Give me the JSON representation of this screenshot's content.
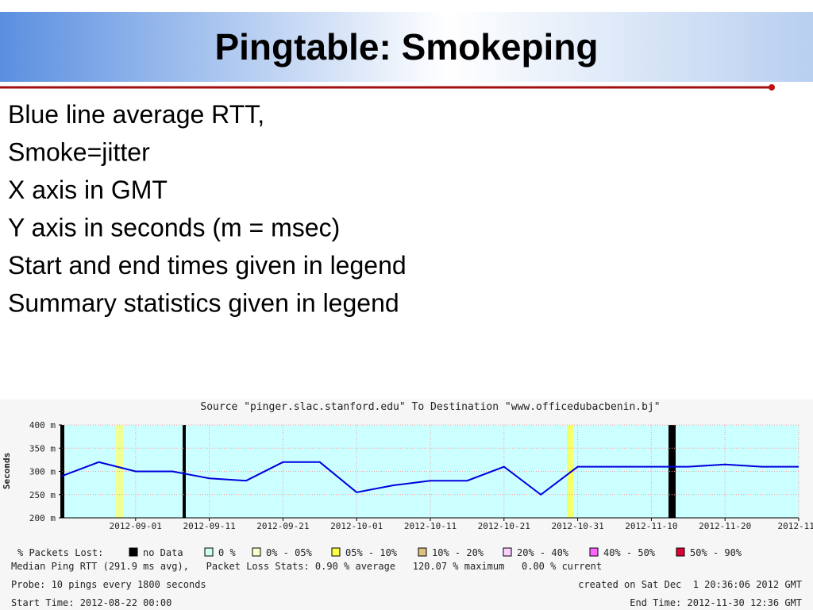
{
  "title": "Pingtable: Smokeping",
  "bullets": [
    "Blue line average RTT,",
    "Smoke=jitter",
    "X axis in GMT",
    "Y axis in seconds (m = msec)",
    "Start and end times given in legend",
    "Summary statistics given in legend"
  ],
  "chart_data": {
    "type": "line",
    "title": "Source \"pinger.slac.stanford.edu\" To Destination \"www.officedubacbenin.bj\"",
    "y_label": "Seconds",
    "x": [
      "2012-08-22",
      "2012-08-27",
      "2012-09-01",
      "2012-09-06",
      "2012-09-11",
      "2012-09-16",
      "2012-09-21",
      "2012-09-26",
      "2012-10-01",
      "2012-10-06",
      "2012-10-11",
      "2012-10-16",
      "2012-10-21",
      "2012-10-26",
      "2012-10-31",
      "2012-11-05",
      "2012-11-10",
      "2012-11-15",
      "2012-11-20",
      "2012-11-25",
      "2012-11-30"
    ],
    "series": [
      {
        "name": "Median Ping RTT",
        "color": "#0000dd",
        "values": [
          0.29,
          0.32,
          0.3,
          0.3,
          0.285,
          0.28,
          0.32,
          0.32,
          0.255,
          0.27,
          0.28,
          0.28,
          0.31,
          0.25,
          0.31,
          0.31,
          0.31,
          0.31,
          0.315,
          0.31,
          0.31
        ]
      }
    ],
    "xlim": [
      "2012-08-22",
      "2012-11-30"
    ],
    "xticks": [
      "2012-09-01",
      "2012-09-11",
      "2012-09-21",
      "2012-10-01",
      "2012-10-11",
      "2012-10-21",
      "2012-10-31",
      "2012-11-10",
      "2012-11-20",
      {
        "value": "2012-11-30",
        "label": "2012-11-"
      }
    ],
    "ylim": [
      0.2,
      0.4
    ],
    "yticks": [
      {
        "value": 0.2,
        "label": "200 m"
      },
      {
        "value": 0.25,
        "label": "250 m"
      },
      {
        "value": 0.3,
        "label": "300 m"
      },
      {
        "value": 0.35,
        "label": "350 m"
      },
      {
        "value": 0.4,
        "label": "400 m"
      }
    ],
    "grid": true,
    "legend_title": "% Packets Lost:",
    "loss_legend": [
      {
        "name": "no Data",
        "color": "#000000"
      },
      {
        "name": "0 %",
        "color": "#ccffee"
      },
      {
        "name": "0% - 05%",
        "color": "#ffffcc"
      },
      {
        "name": "05% - 10%",
        "color": "#ffff44"
      },
      {
        "name": "10% - 20%",
        "color": "#e0c080"
      },
      {
        "name": "20% - 40%",
        "color": "#ffd0ff"
      },
      {
        "name": "40% - 50%",
        "color": "#ff66ff"
      },
      {
        "name": "50% - 90%",
        "color": "#dd0033"
      }
    ],
    "stats": "Median Ping RTT (291.9 ms avg),   Packet Loss Stats: 0.90 % average   120.07 % maximum   0.00 % current",
    "probe": "Probe: 10 pings every 1800 seconds",
    "created": "created on Sat Dec  1 20:36:06 2012 GMT",
    "start_time": "Start Time: 2012-08-22 00:00",
    "end_time": "End Time: 2012-11-30 12:36 GMT"
  }
}
